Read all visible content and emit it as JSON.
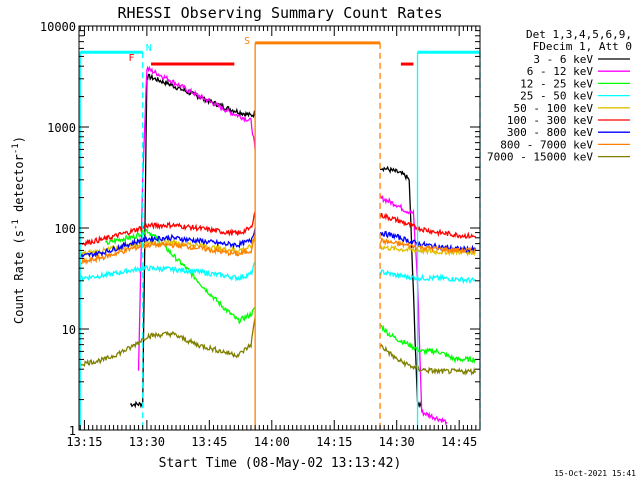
{
  "chart_data": {
    "type": "line",
    "title": "RHESSI Observing Summary Count Rates",
    "xlabel": "Start Time (08-May-02 13:13:42)",
    "ylabel_main": "Count Rate (s",
    "ylabel_sup1": "-1",
    "ylabel_mid": " detector",
    "ylabel_sup2": "-1",
    "ylabel_end": ")",
    "yscale": "log",
    "xlim": [
      "13:13:42",
      "14:50:00"
    ],
    "ylim": [
      1,
      10000
    ],
    "x_ticks": [
      "13:15",
      "13:30",
      "13:45",
      "14:00",
      "14:15",
      "14:30",
      "14:45"
    ],
    "y_ticks": [
      {
        "v": 1,
        "label": "1"
      },
      {
        "v": 10,
        "label": "10"
      },
      {
        "v": 100,
        "label": "100"
      },
      {
        "v": 1000,
        "label": "1000"
      },
      {
        "v": 10000,
        "label": "10000"
      }
    ],
    "legend_header": [
      "Det 1,3,4,5,6,9,",
      "FDecim 1, Att 0"
    ],
    "legend_placement": "right",
    "gap": [
      "13:56",
      "14:26"
    ],
    "markers": [
      {
        "label": "N",
        "x": "13:29",
        "color": "#00ffff"
      },
      {
        "label": "F",
        "x": "13:28",
        "color": "#ff0000"
      },
      {
        "label": "S",
        "x": "13:56",
        "color": "#ff8000"
      }
    ],
    "flag_bars": [
      {
        "name": "night",
        "color": "#00ffff",
        "y": 5500,
        "segments": [
          [
            "13:14",
            "13:29"
          ],
          [
            "14:35",
            "14:50"
          ]
        ],
        "vlines": [
          {
            "x": "13:14",
            "dash": false
          },
          {
            "x": "13:29",
            "dash": true
          },
          {
            "x": "14:35",
            "dash": false
          },
          {
            "x": "14:50",
            "dash": true
          }
        ]
      },
      {
        "name": "flare",
        "color": "#ff0000",
        "y": 4200,
        "segments": [
          [
            "13:31",
            "13:51"
          ],
          [
            "14:31",
            "14:34"
          ]
        ],
        "vlines": []
      },
      {
        "name": "saa",
        "color": "#ff8000",
        "y": 6800,
        "segments": [
          [
            "13:56",
            "14:26"
          ]
        ],
        "vlines": [
          {
            "x": "13:56",
            "dash": false
          },
          {
            "x": "14:26",
            "dash": true
          }
        ]
      }
    ],
    "series": [
      {
        "name": "3 - 6 keV",
        "color": "#000000",
        "points": [
          [
            "13:26",
            1.8
          ],
          [
            "13:29",
            1.8
          ],
          [
            "13:30",
            3200
          ],
          [
            "13:35",
            2700
          ],
          [
            "13:40",
            2200
          ],
          [
            "13:45",
            1800
          ],
          [
            "13:50",
            1500
          ],
          [
            "13:55",
            1300
          ],
          [
            "13:56",
            1350
          ],
          [
            "14:26",
            400
          ],
          [
            "14:30",
            360
          ],
          [
            "14:32",
            330
          ],
          [
            "14:33",
            300
          ],
          [
            "14:35",
            1.8
          ],
          [
            "14:36",
            1.8
          ]
        ]
      },
      {
        "name": "6 - 12 keV",
        "color": "#ff00ff",
        "points": [
          [
            "13:28",
            4
          ],
          [
            "13:29",
            300
          ],
          [
            "13:30",
            3800
          ],
          [
            "13:35",
            3000
          ],
          [
            "13:40",
            2300
          ],
          [
            "13:45",
            1800
          ],
          [
            "13:50",
            1400
          ],
          [
            "13:55",
            1150
          ],
          [
            "13:56",
            600
          ],
          [
            "14:26",
            200
          ],
          [
            "14:30",
            170
          ],
          [
            "14:32",
            150
          ],
          [
            "14:34",
            140
          ],
          [
            "14:35",
            30
          ],
          [
            "14:36",
            1.5
          ],
          [
            "14:42",
            1.2
          ]
        ]
      },
      {
        "name": "12 - 25 keV",
        "color": "#00ff00",
        "points": [
          [
            "13:20",
            70
          ],
          [
            "13:24",
            78
          ],
          [
            "13:27",
            82
          ],
          [
            "13:30",
            95
          ],
          [
            "13:33",
            75
          ],
          [
            "13:36",
            55
          ],
          [
            "13:40",
            38
          ],
          [
            "13:44",
            25
          ],
          [
            "13:48",
            17
          ],
          [
            "13:52",
            12
          ],
          [
            "13:55",
            14
          ],
          [
            "13:56",
            16
          ],
          [
            "14:26",
            11
          ],
          [
            "14:28",
            9
          ],
          [
            "14:30",
            8
          ],
          [
            "14:33",
            7
          ],
          [
            "14:36",
            6
          ],
          [
            "14:40",
            6
          ],
          [
            "14:44",
            5
          ],
          [
            "14:49",
            5
          ]
        ]
      },
      {
        "name": "25 - 50 keV",
        "color": "#00ffff",
        "points": [
          [
            "13:14",
            32
          ],
          [
            "13:20",
            34
          ],
          [
            "13:26",
            38
          ],
          [
            "13:30",
            40
          ],
          [
            "13:36",
            39
          ],
          [
            "13:42",
            37
          ],
          [
            "13:48",
            34
          ],
          [
            "13:52",
            32
          ],
          [
            "13:55",
            35
          ],
          [
            "13:56",
            45
          ],
          [
            "14:26",
            37
          ],
          [
            "14:30",
            34
          ],
          [
            "14:35",
            32
          ],
          [
            "14:40",
            32
          ],
          [
            "14:45",
            31
          ],
          [
            "14:49",
            30
          ]
        ]
      },
      {
        "name": "50 - 100 keV",
        "color": "#e0c000",
        "points": [
          [
            "13:14",
            55
          ],
          [
            "13:20",
            60
          ],
          [
            "13:26",
            68
          ],
          [
            "13:30",
            72
          ],
          [
            "13:36",
            72
          ],
          [
            "13:42",
            68
          ],
          [
            "13:48",
            62
          ],
          [
            "13:52",
            60
          ],
          [
            "13:55",
            65
          ],
          [
            "13:56",
            80
          ],
          [
            "14:26",
            65
          ],
          [
            "14:30",
            62
          ],
          [
            "14:35",
            60
          ],
          [
            "14:40",
            58
          ],
          [
            "14:45",
            58
          ],
          [
            "14:49",
            57
          ]
        ]
      },
      {
        "name": "100 - 300 keV",
        "color": "#ff0000",
        "points": [
          [
            "13:14",
            70
          ],
          [
            "13:20",
            78
          ],
          [
            "13:26",
            92
          ],
          [
            "13:30",
            105
          ],
          [
            "13:36",
            107
          ],
          [
            "13:42",
            100
          ],
          [
            "13:48",
            92
          ],
          [
            "13:52",
            88
          ],
          [
            "13:55",
            100
          ],
          [
            "13:56",
            145
          ],
          [
            "14:26",
            135
          ],
          [
            "14:30",
            120
          ],
          [
            "14:35",
            100
          ],
          [
            "14:40",
            90
          ],
          [
            "14:45",
            85
          ],
          [
            "14:49",
            82
          ]
        ]
      },
      {
        "name": "300 - 800 keV",
        "color": "#0000ff",
        "points": [
          [
            "13:14",
            52
          ],
          [
            "13:20",
            58
          ],
          [
            "13:26",
            70
          ],
          [
            "13:30",
            78
          ],
          [
            "13:36",
            80
          ],
          [
            "13:42",
            75
          ],
          [
            "13:48",
            70
          ],
          [
            "13:52",
            68
          ],
          [
            "13:55",
            75
          ],
          [
            "13:56",
            100
          ],
          [
            "14:26",
            90
          ],
          [
            "14:30",
            82
          ],
          [
            "14:35",
            70
          ],
          [
            "14:40",
            65
          ],
          [
            "14:45",
            62
          ],
          [
            "14:49",
            61
          ]
        ]
      },
      {
        "name": "800 - 7000 keV",
        "color": "#ff8000",
        "points": [
          [
            "13:14",
            45
          ],
          [
            "13:20",
            52
          ],
          [
            "13:26",
            62
          ],
          [
            "13:30",
            68
          ],
          [
            "13:36",
            68
          ],
          [
            "13:42",
            64
          ],
          [
            "13:48",
            58
          ],
          [
            "13:52",
            55
          ],
          [
            "13:55",
            60
          ],
          [
            "13:56",
            85
          ],
          [
            "14:26",
            75
          ],
          [
            "14:30",
            70
          ],
          [
            "14:35",
            65
          ],
          [
            "14:40",
            62
          ],
          [
            "14:45",
            60
          ],
          [
            "14:49",
            60
          ]
        ]
      },
      {
        "name": "7000 - 15000 keV",
        "color": "#808000",
        "points": [
          [
            "13:14",
            4.5
          ],
          [
            "13:20",
            5
          ],
          [
            "13:26",
            6.5
          ],
          [
            "13:30",
            8.5
          ],
          [
            "13:36",
            9
          ],
          [
            "13:42",
            7
          ],
          [
            "13:48",
            6
          ],
          [
            "13:52",
            5.5
          ],
          [
            "13:55",
            7
          ],
          [
            "13:56",
            13
          ],
          [
            "14:26",
            7
          ],
          [
            "14:30",
            5
          ],
          [
            "14:35",
            4
          ],
          [
            "14:40",
            3.8
          ],
          [
            "14:45",
            3.8
          ],
          [
            "14:49",
            3.8
          ]
        ]
      }
    ]
  },
  "footer": {
    "date": "15-Oct-2021 15:41"
  }
}
